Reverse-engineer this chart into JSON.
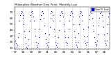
{
  "title": "Milwaukee Weather Dew Point",
  "subtitle": "Monthly Low",
  "dot_color": "#0000cc",
  "background_color": "#ffffff",
  "grid_color": "#bbbbbb",
  "ylim": [
    8,
    78
  ],
  "yticks": [
    10,
    20,
    30,
    40,
    50,
    60,
    70
  ],
  "ytick_labels": [
    "10",
    "20",
    "30",
    "40",
    "50",
    "60",
    "70"
  ],
  "legend_label": "Dew Pt Low",
  "data": [
    22,
    18,
    12,
    15,
    28,
    35,
    55,
    65,
    68,
    72,
    70,
    65,
    60,
    50,
    38,
    28,
    18,
    12,
    10,
    14,
    25,
    38,
    55,
    65,
    70,
    72,
    68,
    62,
    55,
    42,
    30,
    20,
    15,
    12,
    18,
    28,
    42,
    58,
    65,
    70,
    72,
    68,
    60,
    48,
    35,
    25,
    18,
    15,
    12,
    20,
    32,
    45,
    60,
    68,
    72,
    70,
    65,
    55,
    42,
    30,
    20,
    15,
    12,
    18,
    28,
    40,
    55,
    65,
    70,
    72,
    68,
    62,
    50,
    38,
    28,
    20,
    15,
    18,
    28,
    42,
    55,
    65,
    70,
    72,
    68,
    62,
    50,
    38,
    28,
    20,
    15,
    12,
    20,
    35,
    50,
    62,
    68,
    72,
    70,
    65,
    55,
    42,
    30,
    22,
    18,
    15,
    20,
    30,
    45,
    58,
    65,
    70,
    72,
    68,
    60,
    48,
    38,
    28,
    20,
    16,
    14,
    22,
    32,
    48,
    60,
    68,
    72,
    70,
    65,
    55,
    45,
    32,
    22,
    18,
    15,
    22,
    35,
    50,
    62,
    68
  ],
  "year_labels": [
    "97",
    "98",
    "99",
    "00",
    "01",
    "02",
    "03",
    "04",
    "05",
    "06",
    "07",
    "08"
  ],
  "n_months": 140
}
